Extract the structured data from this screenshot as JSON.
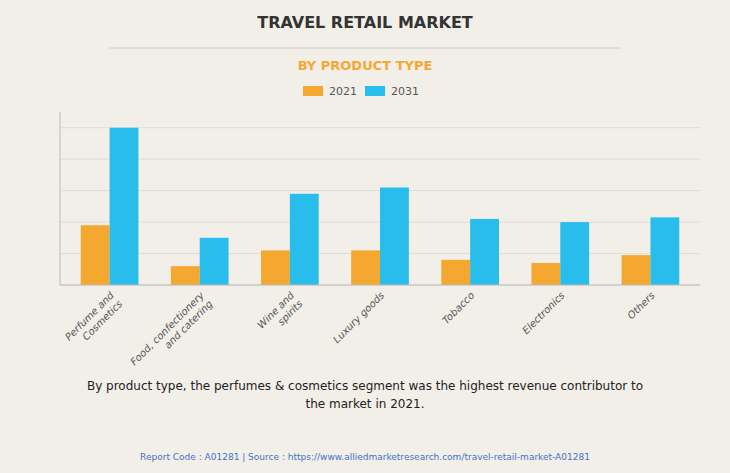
{
  "chart_data": {
    "type": "bar",
    "title": "TRAVEL RETAIL MARKET",
    "subtitle": "BY PRODUCT TYPE",
    "categories": [
      "Perfume and\nCosmetics",
      "Food, confectionery\nand catering",
      "Wine and\nspirits",
      "Luxury goods",
      "Tobacco",
      "Electronics",
      "Others"
    ],
    "series": [
      {
        "name": "2021",
        "color": "#F5A830",
        "values": [
          0.38,
          0.12,
          0.22,
          0.22,
          0.16,
          0.14,
          0.19
        ]
      },
      {
        "name": "2031",
        "color": "#29BDEC",
        "values": [
          1.0,
          0.3,
          0.58,
          0.62,
          0.42,
          0.4,
          0.43
        ]
      }
    ],
    "ylim": [
      0,
      1.1
    ],
    "yticks": [
      0,
      0.2,
      0.4,
      0.6,
      0.8,
      1
    ],
    "grid": true,
    "legend": "top",
    "tick_labels": "x",
    "annotations": [
      "By product type, the perfumes & cosmetics segment was the highest revenue contributor to\nthe market in 2021.",
      "Report Code : A01281  |  Source : https://www.alliedmarketresearch.com/travel-retail-market-A01281"
    ]
  }
}
